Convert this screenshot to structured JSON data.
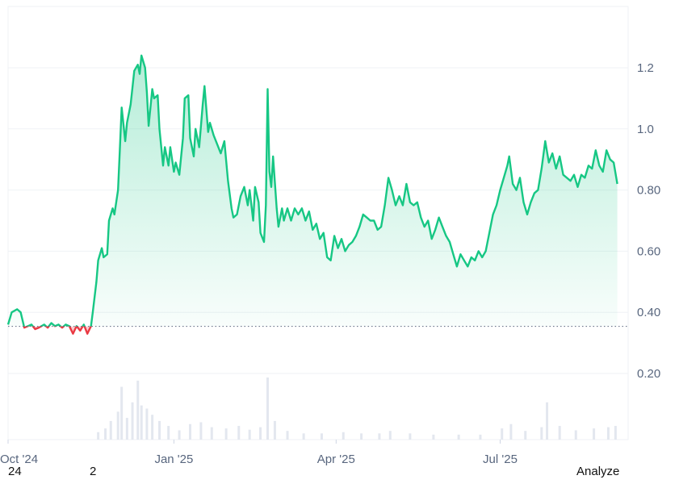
{
  "chart_data": {
    "type": "area",
    "grid": true,
    "baseline_value": 0.354,
    "ylim": [
      0,
      1.4
    ],
    "yticks": [
      {
        "value": 1.2,
        "label": "1.2"
      },
      {
        "value": 1.0,
        "label": "1.0"
      },
      {
        "value": 0.8,
        "label": "0.80"
      },
      {
        "value": 0.6,
        "label": "0.60"
      },
      {
        "value": 0.4,
        "label": "0.40"
      },
      {
        "value": 0.2,
        "label": "0.20"
      }
    ],
    "xticks": [
      {
        "date": "2024-10-01",
        "label": "Oct '24"
      },
      {
        "date": "2025-01-01",
        "label": "Jan '25"
      },
      {
        "date": "2025-04-01",
        "label": "Apr '25"
      },
      {
        "date": "2025-07-01",
        "label": "Jul '25"
      }
    ],
    "x_range": [
      "2024-10-01",
      "2025-09-10"
    ],
    "colors": {
      "above": "#16c784",
      "below": "#ea3943",
      "grid": "#eff2f5",
      "volume": "#e3e7ef"
    },
    "series": [
      {
        "values": [
          [
            "2024-10-01",
            0.36
          ],
          [
            "2024-10-03",
            0.4
          ],
          [
            "2024-10-06",
            0.41
          ],
          [
            "2024-10-08",
            0.4
          ],
          [
            "2024-10-10",
            0.35
          ],
          [
            "2024-10-12",
            0.355
          ],
          [
            "2024-10-14",
            0.36
          ],
          [
            "2024-10-16",
            0.345
          ],
          [
            "2024-10-18",
            0.35
          ],
          [
            "2024-10-21",
            0.36
          ],
          [
            "2024-10-23",
            0.35
          ],
          [
            "2024-10-25",
            0.365
          ],
          [
            "2024-10-27",
            0.355
          ],
          [
            "2024-10-29",
            0.36
          ],
          [
            "2024-10-31",
            0.35
          ],
          [
            "2024-11-02",
            0.36
          ],
          [
            "2024-11-04",
            0.355
          ],
          [
            "2024-11-06",
            0.33
          ],
          [
            "2024-11-08",
            0.355
          ],
          [
            "2024-11-10",
            0.34
          ],
          [
            "2024-11-12",
            0.36
          ],
          [
            "2024-11-14",
            0.33
          ],
          [
            "2024-11-16",
            0.355
          ],
          [
            "2024-11-17",
            0.4
          ],
          [
            "2024-11-19",
            0.5
          ],
          [
            "2024-11-20",
            0.57
          ],
          [
            "2024-11-22",
            0.61
          ],
          [
            "2024-11-23",
            0.58
          ],
          [
            "2024-11-25",
            0.59
          ],
          [
            "2024-11-26",
            0.7
          ],
          [
            "2024-11-28",
            0.74
          ],
          [
            "2024-11-29",
            0.72
          ],
          [
            "2024-12-01",
            0.8
          ],
          [
            "2024-12-02",
            0.93
          ],
          [
            "2024-12-03",
            1.07
          ],
          [
            "2024-12-05",
            0.96
          ],
          [
            "2024-12-06",
            1.02
          ],
          [
            "2024-12-08",
            1.08
          ],
          [
            "2024-12-10",
            1.19
          ],
          [
            "2024-12-12",
            1.21
          ],
          [
            "2024-12-13",
            1.18
          ],
          [
            "2024-12-14",
            1.24
          ],
          [
            "2024-12-16",
            1.2
          ],
          [
            "2024-12-17",
            1.12
          ],
          [
            "2024-12-18",
            1.01
          ],
          [
            "2024-12-20",
            1.13
          ],
          [
            "2024-12-21",
            1.1
          ],
          [
            "2024-12-23",
            1.11
          ],
          [
            "2024-12-24",
            1.0
          ],
          [
            "2024-12-26",
            0.88
          ],
          [
            "2024-12-27",
            0.94
          ],
          [
            "2024-12-29",
            0.88
          ],
          [
            "2024-12-30",
            0.94
          ],
          [
            "2025-01-01",
            0.86
          ],
          [
            "2025-01-02",
            0.89
          ],
          [
            "2025-01-04",
            0.85
          ],
          [
            "2025-01-06",
            0.97
          ],
          [
            "2025-01-07",
            1.1
          ],
          [
            "2025-01-09",
            1.11
          ],
          [
            "2025-01-10",
            0.97
          ],
          [
            "2025-01-12",
            0.91
          ],
          [
            "2025-01-13",
            1.0
          ],
          [
            "2025-01-15",
            0.94
          ],
          [
            "2025-01-17",
            1.08
          ],
          [
            "2025-01-18",
            1.14
          ],
          [
            "2025-01-20",
            0.99
          ],
          [
            "2025-01-21",
            1.02
          ],
          [
            "2025-01-23",
            0.98
          ],
          [
            "2025-01-25",
            0.95
          ],
          [
            "2025-01-27",
            0.92
          ],
          [
            "2025-01-29",
            0.96
          ],
          [
            "2025-01-31",
            0.83
          ],
          [
            "2025-02-02",
            0.74
          ],
          [
            "2025-02-03",
            0.71
          ],
          [
            "2025-02-05",
            0.72
          ],
          [
            "2025-02-07",
            0.78
          ],
          [
            "2025-02-09",
            0.81
          ],
          [
            "2025-02-11",
            0.75
          ],
          [
            "2025-02-12",
            0.8
          ],
          [
            "2025-02-14",
            0.7
          ],
          [
            "2025-02-15",
            0.81
          ],
          [
            "2025-02-17",
            0.76
          ],
          [
            "2025-02-18",
            0.66
          ],
          [
            "2025-02-20",
            0.63
          ],
          [
            "2025-02-21",
            0.75
          ],
          [
            "2025-02-22",
            1.13
          ],
          [
            "2025-02-23",
            0.86
          ],
          [
            "2025-02-24",
            0.81
          ],
          [
            "2025-02-25",
            0.91
          ],
          [
            "2025-02-27",
            0.74
          ],
          [
            "2025-02-28",
            0.68
          ],
          [
            "2025-03-02",
            0.74
          ],
          [
            "2025-03-03",
            0.7
          ],
          [
            "2025-03-05",
            0.74
          ],
          [
            "2025-03-07",
            0.7
          ],
          [
            "2025-03-09",
            0.74
          ],
          [
            "2025-03-11",
            0.72
          ],
          [
            "2025-03-13",
            0.74
          ],
          [
            "2025-03-15",
            0.7
          ],
          [
            "2025-03-17",
            0.73
          ],
          [
            "2025-03-19",
            0.67
          ],
          [
            "2025-03-21",
            0.69
          ],
          [
            "2025-03-23",
            0.64
          ],
          [
            "2025-03-25",
            0.66
          ],
          [
            "2025-03-27",
            0.58
          ],
          [
            "2025-03-29",
            0.57
          ],
          [
            "2025-03-31",
            0.65
          ],
          [
            "2025-04-02",
            0.61
          ],
          [
            "2025-04-04",
            0.64
          ],
          [
            "2025-04-06",
            0.6
          ],
          [
            "2025-04-08",
            0.62
          ],
          [
            "2025-04-10",
            0.63
          ],
          [
            "2025-04-12",
            0.65
          ],
          [
            "2025-04-14",
            0.68
          ],
          [
            "2025-04-16",
            0.72
          ],
          [
            "2025-04-18",
            0.71
          ],
          [
            "2025-04-20",
            0.7
          ],
          [
            "2025-04-22",
            0.7
          ],
          [
            "2025-04-24",
            0.67
          ],
          [
            "2025-04-26",
            0.68
          ],
          [
            "2025-04-28",
            0.75
          ],
          [
            "2025-04-30",
            0.84
          ],
          [
            "2025-05-02",
            0.8
          ],
          [
            "2025-05-04",
            0.75
          ],
          [
            "2025-05-06",
            0.78
          ],
          [
            "2025-05-08",
            0.75
          ],
          [
            "2025-05-10",
            0.82
          ],
          [
            "2025-05-12",
            0.76
          ],
          [
            "2025-05-14",
            0.75
          ],
          [
            "2025-05-16",
            0.76
          ],
          [
            "2025-05-18",
            0.71
          ],
          [
            "2025-05-20",
            0.68
          ],
          [
            "2025-05-22",
            0.7
          ],
          [
            "2025-05-24",
            0.64
          ],
          [
            "2025-05-26",
            0.67
          ],
          [
            "2025-05-28",
            0.71
          ],
          [
            "2025-05-30",
            0.68
          ],
          [
            "2025-06-01",
            0.65
          ],
          [
            "2025-06-03",
            0.63
          ],
          [
            "2025-06-05",
            0.59
          ],
          [
            "2025-06-07",
            0.55
          ],
          [
            "2025-06-09",
            0.59
          ],
          [
            "2025-06-11",
            0.57
          ],
          [
            "2025-06-13",
            0.55
          ],
          [
            "2025-06-15",
            0.58
          ],
          [
            "2025-06-17",
            0.57
          ],
          [
            "2025-06-19",
            0.6
          ],
          [
            "2025-06-21",
            0.58
          ],
          [
            "2025-06-23",
            0.6
          ],
          [
            "2025-06-25",
            0.66
          ],
          [
            "2025-06-27",
            0.72
          ],
          [
            "2025-06-29",
            0.75
          ],
          [
            "2025-07-01",
            0.8
          ],
          [
            "2025-07-03",
            0.84
          ],
          [
            "2025-07-05",
            0.88
          ],
          [
            "2025-07-06",
            0.91
          ],
          [
            "2025-07-08",
            0.82
          ],
          [
            "2025-07-10",
            0.8
          ],
          [
            "2025-07-12",
            0.84
          ],
          [
            "2025-07-14",
            0.76
          ],
          [
            "2025-07-16",
            0.72
          ],
          [
            "2025-07-18",
            0.76
          ],
          [
            "2025-07-20",
            0.79
          ],
          [
            "2025-07-22",
            0.8
          ],
          [
            "2025-07-24",
            0.87
          ],
          [
            "2025-07-26",
            0.96
          ],
          [
            "2025-07-28",
            0.89
          ],
          [
            "2025-07-30",
            0.92
          ],
          [
            "2025-08-01",
            0.87
          ],
          [
            "2025-08-03",
            0.91
          ],
          [
            "2025-08-05",
            0.85
          ],
          [
            "2025-08-07",
            0.84
          ],
          [
            "2025-08-09",
            0.83
          ],
          [
            "2025-08-11",
            0.85
          ],
          [
            "2025-08-13",
            0.81
          ],
          [
            "2025-08-15",
            0.85
          ],
          [
            "2025-08-17",
            0.84
          ],
          [
            "2025-08-19",
            0.88
          ],
          [
            "2025-08-21",
            0.87
          ],
          [
            "2025-08-23",
            0.93
          ],
          [
            "2025-08-25",
            0.88
          ],
          [
            "2025-08-27",
            0.86
          ],
          [
            "2025-08-29",
            0.93
          ],
          [
            "2025-08-31",
            0.9
          ],
          [
            "2025-09-02",
            0.89
          ],
          [
            "2025-09-04",
            0.82
          ]
        ]
      }
    ],
    "volume": [
      [
        "2024-11-20",
        0.12
      ],
      [
        "2024-11-24",
        0.18
      ],
      [
        "2024-11-27",
        0.3
      ],
      [
        "2024-12-01",
        0.45
      ],
      [
        "2024-12-03",
        0.85
      ],
      [
        "2024-12-06",
        0.35
      ],
      [
        "2024-12-09",
        0.6
      ],
      [
        "2024-12-12",
        0.95
      ],
      [
        "2024-12-14",
        0.55
      ],
      [
        "2024-12-17",
        0.5
      ],
      [
        "2024-12-20",
        0.4
      ],
      [
        "2024-12-24",
        0.3
      ],
      [
        "2024-12-29",
        0.22
      ],
      [
        "2025-01-04",
        0.15
      ],
      [
        "2025-01-10",
        0.25
      ],
      [
        "2025-01-16",
        0.28
      ],
      [
        "2025-01-22",
        0.2
      ],
      [
        "2025-01-30",
        0.18
      ],
      [
        "2025-02-06",
        0.22
      ],
      [
        "2025-02-12",
        0.16
      ],
      [
        "2025-02-18",
        0.2
      ],
      [
        "2025-02-22",
        1.0
      ],
      [
        "2025-02-26",
        0.3
      ],
      [
        "2025-03-05",
        0.14
      ],
      [
        "2025-03-14",
        0.1
      ],
      [
        "2025-03-24",
        0.1
      ],
      [
        "2025-04-05",
        0.12
      ],
      [
        "2025-04-15",
        0.1
      ],
      [
        "2025-04-25",
        0.1
      ],
      [
        "2025-05-01",
        0.14
      ],
      [
        "2025-05-12",
        0.1
      ],
      [
        "2025-05-25",
        0.08
      ],
      [
        "2025-06-08",
        0.08
      ],
      [
        "2025-06-20",
        0.08
      ],
      [
        "2025-07-02",
        0.18
      ],
      [
        "2025-07-07",
        0.25
      ],
      [
        "2025-07-15",
        0.14
      ],
      [
        "2025-07-24",
        0.2
      ],
      [
        "2025-07-27",
        0.6
      ],
      [
        "2025-08-03",
        0.22
      ],
      [
        "2025-08-12",
        0.15
      ],
      [
        "2025-08-22",
        0.18
      ],
      [
        "2025-08-30",
        0.2
      ],
      [
        "2025-09-03",
        0.22
      ]
    ]
  },
  "footer": {
    "left_1": "24",
    "left_2": "2",
    "right": "Analyze"
  }
}
